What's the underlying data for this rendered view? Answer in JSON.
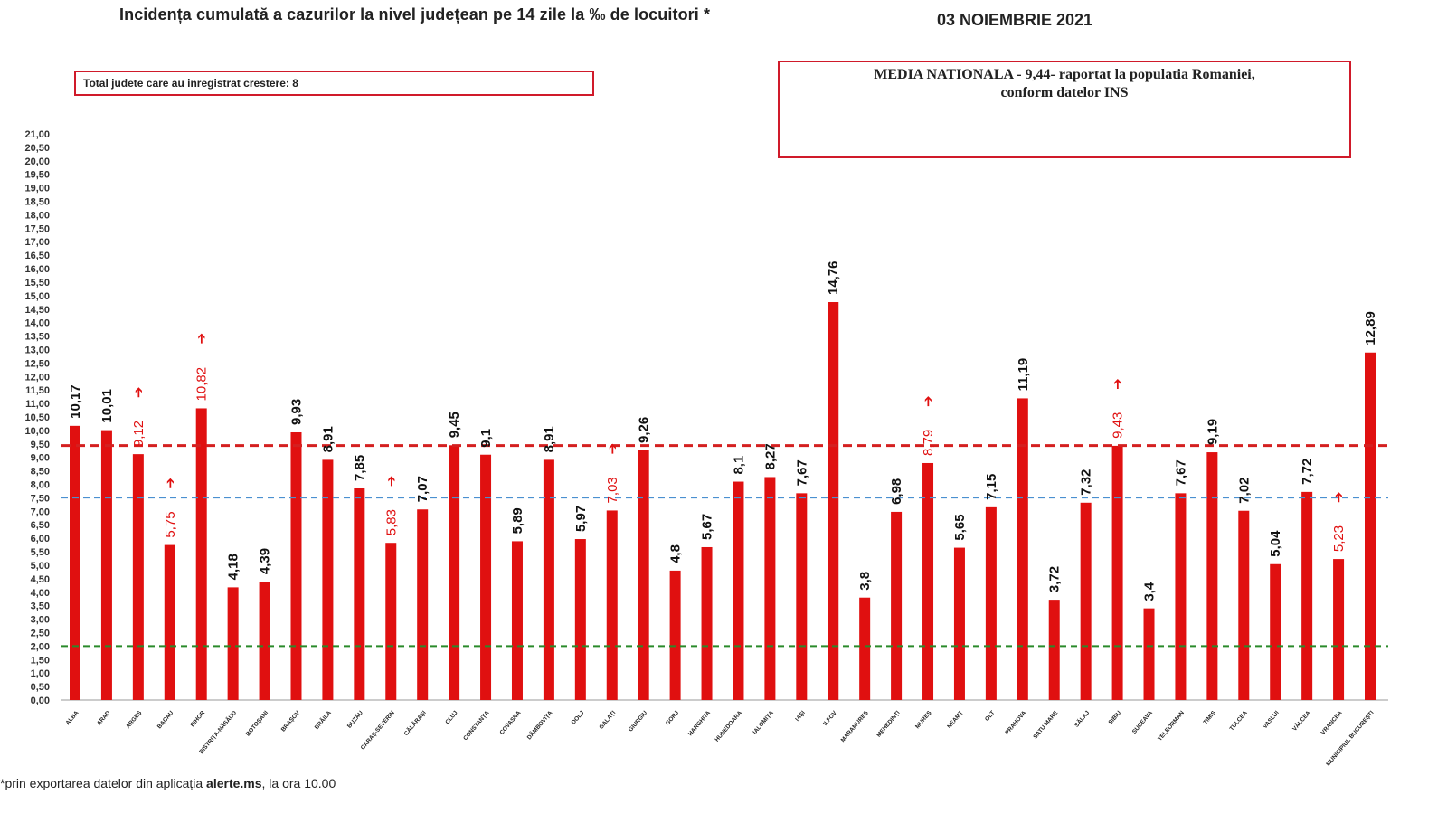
{
  "header": {
    "title": "Incidența cumulată a cazurilor la nivel județean pe 14 zile la ‰ de locuitori *",
    "date": "03 NOIEMBRIE 2021"
  },
  "info_boxes": {
    "left": "Total judete care au inregistrat crestere: 8",
    "right_line1": "MEDIA NATIONALA - 9,44-  raportat la populatia Romaniei,",
    "right_line2": "conform datelor INS"
  },
  "footnote": {
    "prefix": "*prin exportarea datelor din aplicația ",
    "bold": "alerte.ms",
    "suffix": ", la ora 10.00"
  },
  "colors": {
    "bar": "#e01010",
    "up_label": "#e01010",
    "normal_label": "#111111",
    "national_line": "#d42020",
    "blue_line": "#4a90d0",
    "green_line": "#2a8a2a"
  },
  "chart_data": {
    "type": "bar",
    "title": "Incidența cumulată a cazurilor la nivel județean pe 14 zile la ‰ de locuitori *",
    "xlabel": "",
    "ylabel": "",
    "ylim": [
      0,
      21
    ],
    "ytick_step": 0.5,
    "yticks_labels": [
      "0,00",
      "0,50",
      "1,00",
      "1,50",
      "2,00",
      "2,50",
      "3,00",
      "3,50",
      "4,00",
      "4,50",
      "5,00",
      "5,50",
      "6,00",
      "6,50",
      "7,00",
      "7,50",
      "8,00",
      "8,50",
      "9,00",
      "9,50",
      "10,00",
      "10,50",
      "11,00",
      "11,50",
      "12,00",
      "12,50",
      "13,00",
      "13,50",
      "14,00",
      "14,50",
      "15,00",
      "15,50",
      "16,00",
      "16,50",
      "17,00",
      "17,50",
      "18,00",
      "18,50",
      "19,00",
      "19,50",
      "20,00",
      "20,50",
      "21,00"
    ],
    "categories": [
      "ALBA",
      "ARAD",
      "ARGEȘ",
      "BACĂU",
      "BIHOR",
      "BISTRIȚA-NĂSĂUD",
      "BOTOȘANI",
      "BRAȘOV",
      "BRĂILA",
      "BUZĂU",
      "CARAȘ-SEVERIN",
      "CĂLĂRAȘI",
      "CLUJ",
      "CONSTANȚA",
      "COVASNA",
      "DÂMBOVIȚA",
      "DOLJ",
      "GALAȚI",
      "GIURGIU",
      "GORJ",
      "HARGHITA",
      "HUNEDOARA",
      "IALOMIȚA",
      "IAȘI",
      "ILFOV",
      "MARAMUREȘ",
      "MEHEDINȚI",
      "MUREȘ",
      "NEAMȚ",
      "OLT",
      "PRAHOVA",
      "SATU MARE",
      "SĂLAJ",
      "SIBIU",
      "SUCEAVA",
      "TELEORMAN",
      "TIMIȘ",
      "TULCEA",
      "VASLUI",
      "VÂLCEA",
      "VRANCEA",
      "MUNICIPIUL BUCUREȘTI"
    ],
    "values": [
      10.17,
      10.01,
      9.12,
      5.75,
      10.82,
      4.18,
      4.39,
      9.93,
      8.91,
      7.85,
      5.83,
      7.07,
      9.45,
      9.1,
      5.89,
      8.91,
      5.97,
      7.03,
      9.26,
      4.8,
      5.67,
      8.1,
      8.27,
      7.67,
      14.76,
      3.8,
      6.98,
      8.79,
      5.65,
      7.15,
      11.19,
      3.72,
      7.32,
      9.43,
      3.4,
      7.67,
      9.19,
      7.02,
      5.04,
      7.72,
      5.23,
      12.89
    ],
    "value_labels": [
      "10,17",
      "10,01",
      "9,12",
      "5,75",
      "10,82",
      "4,18",
      "4,39",
      "9,93",
      "8,91",
      "7,85",
      "5,83",
      "7,07",
      "9,45",
      "9,1",
      "5,89",
      "8,91",
      "5,97",
      "7,03",
      "9,26",
      "4,8",
      "5,67",
      "8,1",
      "8,27",
      "7,67",
      "14,76",
      "3,8",
      "6,98",
      "8,79",
      "5,65",
      "7,15",
      "11,19",
      "3,72",
      "7,32",
      "9,43",
      "3,4",
      "7,67",
      "9,19",
      "7,02",
      "5,04",
      "7,72",
      "5,23",
      "12,89"
    ],
    "increased": [
      false,
      false,
      true,
      true,
      true,
      false,
      false,
      false,
      false,
      false,
      true,
      false,
      false,
      false,
      false,
      false,
      false,
      true,
      false,
      false,
      false,
      false,
      false,
      false,
      false,
      false,
      false,
      true,
      false,
      false,
      false,
      false,
      false,
      true,
      false,
      false,
      false,
      false,
      false,
      false,
      true,
      false
    ],
    "up_marker": "➔",
    "reference_lines": [
      {
        "name": "national-average",
        "value": 9.44,
        "color": "#d42020"
      },
      {
        "name": "threshold-7.5",
        "value": 7.5,
        "color": "#4a90d0"
      },
      {
        "name": "threshold-2",
        "value": 2.0,
        "color": "#2a8a2a"
      }
    ]
  }
}
